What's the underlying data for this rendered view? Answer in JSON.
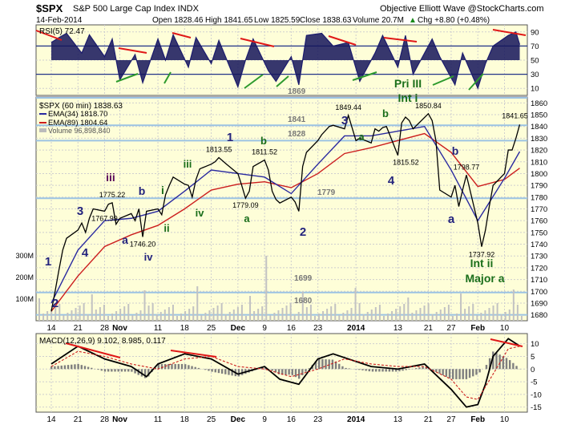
{
  "header": {
    "symbol": "$SPX",
    "title": "S&P 500 Large Cap Index INDX",
    "source": "Objective Elliott Wave @StockCharts.com",
    "date": "14-Feb-2014",
    "open": "Open 1828.46",
    "high": "High 1841.65",
    "low": "Low 1825.59",
    "close": "Close 1838.63",
    "volume": "Volume 20.7M",
    "change": "Chg +8.80 (+0.48%)",
    "change_arrow": "▲"
  },
  "colors": {
    "panel_bg": "#fefed8",
    "grid": "#cfcfcf",
    "price": "#000000",
    "ema34": "#2a2aa0",
    "ema89": "#cc1e1e",
    "support": "#9cc3e3",
    "rsi_fill": "#14145a",
    "annotation_blue": "#23237d",
    "annotation_green": "#1a6e1a",
    "annotation_purple": "#5a0a5a",
    "trend_red": "#e01818",
    "trend_green": "#2d9a2d"
  },
  "chart_data": [
    {
      "type": "line",
      "panel": "RSI",
      "legend": "RSI(5) 72.47",
      "ylim": [
        0,
        100
      ],
      "yticks": [
        10,
        30,
        50,
        70,
        90
      ],
      "series": [
        {
          "name": "RSI(5)",
          "x": [
            "2013-10-14",
            "2013-10-16",
            "2013-10-18",
            "2013-10-22",
            "2013-10-24",
            "2013-10-28",
            "2013-10-30",
            "2013-11-01",
            "2013-11-05",
            "2013-11-07",
            "2013-11-11",
            "2013-11-13",
            "2013-11-15",
            "2013-11-19",
            "2013-11-21",
            "2013-11-25",
            "2013-11-27",
            "2013-12-02",
            "2013-12-04",
            "2013-12-06",
            "2013-12-10",
            "2013-12-12",
            "2013-12-16",
            "2013-12-18",
            "2013-12-20",
            "2013-12-24",
            "2013-12-27",
            "2013-12-31",
            "2014-01-03",
            "2014-01-07",
            "2014-01-09",
            "2014-01-13",
            "2014-01-15",
            "2014-01-17",
            "2014-01-22",
            "2014-01-24",
            "2014-01-28",
            "2014-01-30",
            "2014-02-03",
            "2014-02-05",
            "2014-02-07",
            "2014-02-11",
            "2014-02-13",
            "2014-02-14"
          ],
          "values": [
            75,
            82,
            88,
            60,
            86,
            55,
            80,
            22,
            58,
            18,
            80,
            50,
            86,
            40,
            82,
            45,
            78,
            12,
            50,
            80,
            35,
            20,
            55,
            15,
            85,
            88,
            70,
            75,
            20,
            60,
            85,
            40,
            85,
            30,
            80,
            55,
            15,
            60,
            10,
            45,
            70,
            85,
            90,
            72
          ]
        }
      ],
      "annotations": [
        "1869"
      ]
    },
    {
      "type": "line",
      "panel": "Price",
      "legend": [
        "$SPX (60 min) 1838.63",
        "EMA(34) 1818.70",
        "EMA(89) 1804.64",
        "Volume 96,898,840"
      ],
      "ylim": [
        1675,
        1865
      ],
      "yticks": [
        1680,
        1690,
        1700,
        1710,
        1720,
        1730,
        1740,
        1750,
        1760,
        1770,
        1780,
        1790,
        1800,
        1810,
        1820,
        1830,
        1840,
        1850,
        1860
      ],
      "support_lines": [
        1869,
        1841,
        1828,
        1779,
        1699,
        1680
      ],
      "support_labels": [
        "1841",
        "1828",
        "1779",
        "1699",
        "1680"
      ],
      "series": [
        {
          "name": "$SPX (60 min)",
          "x": [
            "2013-10-14",
            "2013-10-15",
            "2013-10-16",
            "2013-10-17",
            "2013-10-18",
            "2013-10-21",
            "2013-10-22",
            "2013-10-23",
            "2013-10-24",
            "2013-10-25",
            "2013-10-28",
            "2013-10-29",
            "2013-10-30",
            "2013-10-31",
            "2013-11-01",
            "2013-11-04",
            "2013-11-05",
            "2013-11-06",
            "2013-11-07",
            "2013-11-08",
            "2013-11-11",
            "2013-11-12",
            "2013-11-13",
            "2013-11-14",
            "2013-11-15",
            "2013-11-18",
            "2013-11-19",
            "2013-11-20",
            "2013-11-21",
            "2013-11-22",
            "2013-11-25",
            "2013-11-26",
            "2013-11-27",
            "2013-11-29",
            "2013-12-02",
            "2013-12-03",
            "2013-12-04",
            "2013-12-05",
            "2013-12-06",
            "2013-12-09",
            "2013-12-10",
            "2013-12-11",
            "2013-12-12",
            "2013-12-13",
            "2013-12-16",
            "2013-12-17",
            "2013-12-18",
            "2013-12-19",
            "2013-12-20",
            "2013-12-23",
            "2013-12-24",
            "2013-12-26",
            "2013-12-27",
            "2013-12-30",
            "2013-12-31",
            "2014-01-02",
            "2014-01-03",
            "2014-01-06",
            "2014-01-07",
            "2014-01-08",
            "2014-01-09",
            "2014-01-10",
            "2014-01-13",
            "2014-01-14",
            "2014-01-15",
            "2014-01-16",
            "2014-01-17",
            "2014-01-21",
            "2014-01-22",
            "2014-01-23",
            "2014-01-24",
            "2014-01-27",
            "2014-01-28",
            "2014-01-29",
            "2014-01-30",
            "2014-01-31",
            "2014-02-03",
            "2014-02-04",
            "2014-02-05",
            "2014-02-06",
            "2014-02-07",
            "2014-02-10",
            "2014-02-11",
            "2014-02-12",
            "2014-02-13",
            "2014-02-14"
          ],
          "values": [
            1683,
            1700,
            1718,
            1735,
            1745,
            1752,
            1758,
            1750,
            1762,
            1770,
            1768,
            1774,
            1775.22,
            1757,
            1762,
            1766,
            1760,
            1770,
            1746.2,
            1768,
            1770,
            1765,
            1782,
            1790,
            1797,
            1791,
            1790,
            1780,
            1795,
            1804,
            1808,
            1810,
            1813.55,
            1808,
            1800,
            1790,
            1779.09,
            1785,
            1806,
            1811.52,
            1803,
            1785,
            1778,
            1775,
            1780,
            1776,
            1767.99,
            1806,
            1818,
            1828,
            1833,
            1840,
            1841,
            1838,
            1849.44,
            1828,
            1830,
            1826,
            1838,
            1836,
            1839,
            1840,
            1815.52,
            1843,
            1848,
            1845,
            1838,
            1850.84,
            1845,
            1828,
            1786,
            1780,
            1790,
            1772,
            1786,
            1798.77,
            1758,
            1737.92,
            1752,
            1772,
            1790,
            1800,
            1820,
            1820,
            1830,
            1841.65
          ]
        },
        {
          "name": "EMA(34)",
          "x": [
            "2013-10-14",
            "2013-10-21",
            "2013-10-28",
            "2013-11-04",
            "2013-11-11",
            "2013-11-18",
            "2013-11-25",
            "2013-12-02",
            "2013-12-09",
            "2013-12-16",
            "2013-12-23",
            "2013-12-30",
            "2014-01-06",
            "2014-01-13",
            "2014-01-20",
            "2014-01-27",
            "2014-02-03",
            "2014-02-10",
            "2014-02-14"
          ],
          "values": [
            1690,
            1735,
            1760,
            1762,
            1768,
            1785,
            1803,
            1800,
            1797,
            1783,
            1808,
            1832,
            1832,
            1836,
            1840,
            1803,
            1760,
            1796,
            1818.7
          ]
        },
        {
          "name": "EMA(89)",
          "x": [
            "2013-10-14",
            "2013-10-21",
            "2013-10-28",
            "2013-11-04",
            "2013-11-11",
            "2013-11-18",
            "2013-11-25",
            "2013-12-02",
            "2013-12-09",
            "2013-12-16",
            "2013-12-23",
            "2013-12-30",
            "2014-01-06",
            "2014-01-13",
            "2014-01-20",
            "2014-01-27",
            "2014-02-03",
            "2014-02-10",
            "2014-02-14"
          ],
          "values": [
            1683,
            1713,
            1738,
            1748,
            1756,
            1770,
            1786,
            1791,
            1793,
            1788,
            1800,
            1817,
            1822,
            1828,
            1834,
            1818,
            1789,
            1795,
            1804.64
          ]
        }
      ],
      "volume_labels": [
        "300M",
        "200M",
        "100M"
      ],
      "point_labels": [
        "1775.22",
        "1746.20",
        "1813.55",
        "1811.52",
        "1779.09",
        "1767.99",
        "1849.44",
        "1850.84",
        "1815.52",
        "1798.77",
        "1737.92",
        "1841.65"
      ],
      "wave_labels": [
        {
          "text": "1",
          "color": "blue"
        },
        {
          "text": "2",
          "color": "blue"
        },
        {
          "text": "3",
          "color": "blue"
        },
        {
          "text": "4",
          "color": "blue"
        },
        {
          "text": "iii",
          "color": "purple"
        },
        {
          "text": "a",
          "color": "blue"
        },
        {
          "text": "b",
          "color": "blue"
        },
        {
          "text": "i",
          "color": "green"
        },
        {
          "text": "ii",
          "color": "green"
        },
        {
          "text": "iv",
          "color": "blue"
        },
        {
          "text": "iii",
          "color": "green"
        },
        {
          "text": "iv",
          "color": "green"
        },
        {
          "text": "1",
          "color": "blue"
        },
        {
          "text": "a",
          "color": "green"
        },
        {
          "text": "b",
          "color": "green"
        },
        {
          "text": "2",
          "color": "blue"
        },
        {
          "text": "3",
          "color": "blue"
        },
        {
          "text": "a",
          "color": "green"
        },
        {
          "text": "b",
          "color": "green"
        },
        {
          "text": "4",
          "color": "blue"
        },
        {
          "text": "Pri III",
          "color": "green"
        },
        {
          "text": "Int i",
          "color": "green"
        },
        {
          "text": "b",
          "color": "blue"
        },
        {
          "text": "a",
          "color": "blue"
        },
        {
          "text": "Int ii",
          "color": "green"
        },
        {
          "text": "Major a",
          "color": "green"
        }
      ]
    },
    {
      "type": "line",
      "panel": "MACD",
      "legend": "MACD(12,26,9) 9.102, 8.985, 0.117",
      "ylim": [
        -17,
        14
      ],
      "yticks": [
        -15,
        -10,
        -5,
        0,
        5,
        10
      ],
      "series": [
        {
          "name": "MACD",
          "x": [
            "2013-10-14",
            "2013-10-21",
            "2013-10-28",
            "2013-11-04",
            "2013-11-08",
            "2013-11-11",
            "2013-11-18",
            "2013-11-25",
            "2013-12-02",
            "2013-12-09",
            "2013-12-13",
            "2013-12-18",
            "2013-12-23",
            "2013-12-27",
            "2014-01-06",
            "2014-01-13",
            "2014-01-20",
            "2014-01-27",
            "2014-01-31",
            "2014-02-03",
            "2014-02-05",
            "2014-02-07",
            "2014-02-11",
            "2014-02-14"
          ],
          "values": [
            2,
            9,
            4,
            1,
            -3,
            2,
            6,
            4,
            -2,
            1,
            -4,
            -6,
            4,
            6,
            1,
            0,
            2,
            -8,
            -15,
            -14,
            -6,
            5,
            12,
            9.1
          ]
        },
        {
          "name": "Signal",
          "x": [
            "2013-10-14",
            "2013-10-21",
            "2013-10-28",
            "2013-11-04",
            "2013-11-11",
            "2013-11-18",
            "2013-11-25",
            "2013-12-02",
            "2013-12-09",
            "2013-12-16",
            "2013-12-23",
            "2013-12-30",
            "2014-01-06",
            "2014-01-13",
            "2014-01-20",
            "2014-01-27",
            "2014-01-31",
            "2014-02-03",
            "2014-02-07",
            "2014-02-11",
            "2014-02-14"
          ],
          "values": [
            1,
            7,
            5,
            2,
            0,
            4,
            5,
            1,
            0,
            -3,
            0,
            4,
            2,
            1,
            1,
            -4,
            -11,
            -12,
            -2,
            8,
            9
          ]
        }
      ]
    }
  ],
  "x_axis": {
    "labels": [
      "14",
      "21",
      "28",
      "Nov",
      "11",
      "18",
      "25",
      "Dec",
      "9",
      "16",
      "23",
      "2014",
      "13",
      "21",
      "27",
      "Feb",
      "10"
    ],
    "label_dates": [
      "2013-10-14",
      "2013-10-21",
      "2013-10-28",
      "2013-11-01",
      "2013-11-11",
      "2013-11-18",
      "2013-11-25",
      "2013-12-02",
      "2013-12-09",
      "2013-12-16",
      "2013-12-23",
      "2014-01-02",
      "2014-01-13",
      "2014-01-21",
      "2014-01-27",
      "2014-02-03",
      "2014-02-10"
    ]
  }
}
